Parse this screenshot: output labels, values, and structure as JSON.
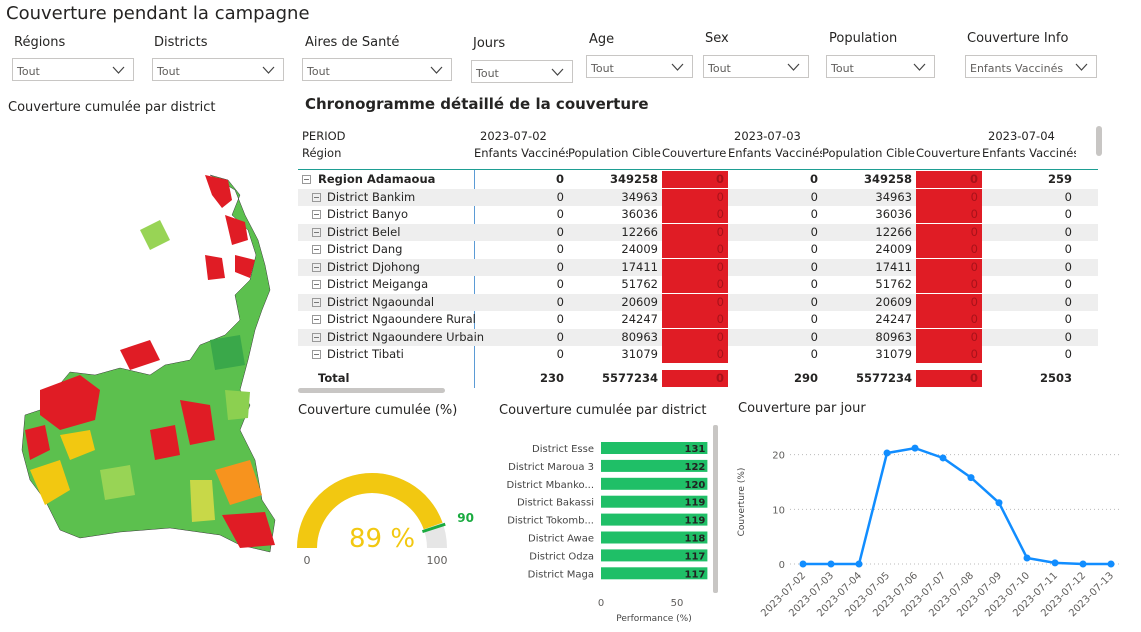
{
  "header": {
    "title": "Couverture pendant la campagne"
  },
  "filters": [
    {
      "label": "Régions",
      "value": "Tout"
    },
    {
      "label": "Districts",
      "value": "Tout"
    },
    {
      "label": "Aires de Santé",
      "value": "Tout"
    },
    {
      "label": "Jours",
      "value": "Tout"
    },
    {
      "label": "Age",
      "value": "Tout"
    },
    {
      "label": "Sex",
      "value": "Tout"
    },
    {
      "label": "Population",
      "value": "Tout"
    },
    {
      "label": "Couverture Info",
      "value": "Enfants Vaccinés"
    }
  ],
  "map": {
    "title": "Couverture cumulée par district"
  },
  "table": {
    "title": "Chronogramme détaillé de la couverture",
    "period_label": "PERIOD",
    "row_label": "Région",
    "periods": [
      "2023-07-02",
      "2023-07-03",
      "2023-07-04"
    ],
    "columns": [
      "Enfants Vaccinés",
      "Population Cible",
      "Couverture"
    ],
    "rows": [
      {
        "name": "Region Adamaoua",
        "values": [
          0,
          349258,
          0,
          0,
          349258,
          0,
          259
        ]
      },
      {
        "name": "District Bankim",
        "values": [
          0,
          34963,
          0,
          0,
          34963,
          0,
          0
        ]
      },
      {
        "name": "District Banyo",
        "values": [
          0,
          36036,
          0,
          0,
          36036,
          0,
          0
        ]
      },
      {
        "name": "District Belel",
        "values": [
          0,
          12266,
          0,
          0,
          12266,
          0,
          0
        ]
      },
      {
        "name": "District Dang",
        "values": [
          0,
          24009,
          0,
          0,
          24009,
          0,
          0
        ]
      },
      {
        "name": "District Djohong",
        "values": [
          0,
          17411,
          0,
          0,
          17411,
          0,
          0
        ]
      },
      {
        "name": "District Meiganga",
        "values": [
          0,
          51762,
          0,
          0,
          51762,
          0,
          0
        ]
      },
      {
        "name": "District Ngaoundal",
        "values": [
          0,
          20609,
          0,
          0,
          20609,
          0,
          0
        ]
      },
      {
        "name": "District Ngaoundere Rural",
        "values": [
          0,
          24247,
          0,
          0,
          24247,
          0,
          0
        ]
      },
      {
        "name": "District Ngaoundere Urbain",
        "values": [
          0,
          80963,
          0,
          0,
          80963,
          0,
          0
        ]
      },
      {
        "name": "District Tibati",
        "values": [
          0,
          31079,
          0,
          0,
          31079,
          0,
          0
        ]
      }
    ],
    "total": {
      "name": "Total",
      "values": [
        230,
        5577234,
        0,
        290,
        5577234,
        0,
        2503
      ]
    }
  },
  "chart_data": [
    {
      "type": "gauge",
      "title": "Couverture cumulée (%)",
      "values": [
        89
      ],
      "value_labels": [
        "89 %"
      ],
      "ylim": [
        0,
        100
      ],
      "yticks": [
        0,
        100
      ],
      "target": 90,
      "color": "#f2c811",
      "target_color": "#1aab40"
    },
    {
      "type": "hbar",
      "title": "Couverture cumulée par district",
      "xlabel": "Performance (%)",
      "categories": [
        "District Esse",
        "District Maroua 3",
        "District Mbanko...",
        "District Bakassi",
        "District Tokomb...",
        "District Awae",
        "District Odza",
        "District Maga"
      ],
      "values": [
        131,
        122,
        120,
        119,
        119,
        118,
        117,
        117
      ],
      "color": "#1fbf67",
      "xlim": [
        0,
        70
      ],
      "xticks": [
        0,
        50
      ]
    },
    {
      "type": "line",
      "title": "Couverture par jour",
      "ylabel": "Couverture (%)",
      "x": [
        "2023-07-02",
        "2023-07-03",
        "2023-07-04",
        "2023-07-05",
        "2023-07-06",
        "2023-07-07",
        "2023-07-08",
        "2023-07-09",
        "2023-07-10",
        "2023-07-11",
        "2023-07-12",
        "2023-07-13"
      ],
      "values": [
        0,
        0,
        0,
        20.3,
        21.2,
        19.4,
        15.8,
        11.2,
        1.1,
        0.2,
        0,
        0
      ],
      "color": "#118dff",
      "ylim": [
        0,
        22.5
      ],
      "yticks": [
        0,
        10,
        20
      ],
      "grid": true
    }
  ]
}
